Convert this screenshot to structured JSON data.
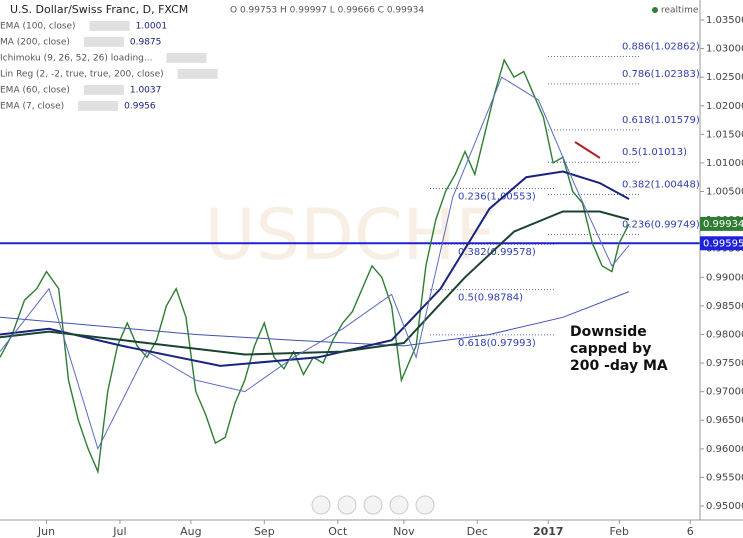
{
  "chart_data": {
    "type": "line",
    "title": "U.S. Dollar/Swiss Franc, D, FXCM",
    "ohlc_text": "O 0.99753 H 0.99997 L 0.99666 C 0.99934",
    "realtime": "realtime",
    "watermark": "USDCHF",
    "indicators": [
      {
        "name": "EMA (100, close)",
        "value": "1.0001"
      },
      {
        "name": "MA (200, close)",
        "value": "0.9875"
      },
      {
        "name": "Ichimoku (9, 26, 52, 26) loading..."
      },
      {
        "name": "Lin Reg (2, -2, true, true, 200, close)"
      },
      {
        "name": "EMA (60, close)",
        "value": "1.0037"
      },
      {
        "name": "EMA (7, close)",
        "value": "0.9956"
      }
    ],
    "xlim": [
      0,
      286
    ],
    "xticks": [
      {
        "value": 19,
        "label": "Jun"
      },
      {
        "value": 49,
        "label": "Jul"
      },
      {
        "value": 78,
        "label": "Aug"
      },
      {
        "value": 108,
        "label": "Sep"
      },
      {
        "value": 138,
        "label": "Oct"
      },
      {
        "value": 165,
        "label": "Nov"
      },
      {
        "value": 195,
        "label": "Dec"
      },
      {
        "value": 224,
        "label": "2017"
      },
      {
        "value": 253,
        "label": "Feb"
      },
      {
        "value": 282,
        "label": "6"
      }
    ],
    "ylim": [
      0.95,
      1.035
    ],
    "yticks": [
      {
        "value": 1.035,
        "label": "1.03500"
      },
      {
        "value": 1.03,
        "label": "1.03000"
      },
      {
        "value": 1.025,
        "label": "1.02500"
      },
      {
        "value": 1.02,
        "label": "1.02000"
      },
      {
        "value": 1.015,
        "label": "1.01500"
      },
      {
        "value": 1.01,
        "label": "1.01000"
      },
      {
        "value": 1.005,
        "label": "1.00500"
      },
      {
        "value": 1.0,
        "label": "1.00000"
      },
      {
        "value": 0.995,
        "label": "0.99500"
      },
      {
        "value": 0.99,
        "label": "0.99000"
      },
      {
        "value": 0.985,
        "label": "0.98500"
      },
      {
        "value": 0.98,
        "label": "0.98000"
      },
      {
        "value": 0.975,
        "label": "0.97500"
      },
      {
        "value": 0.97,
        "label": "0.97000"
      },
      {
        "value": 0.965,
        "label": "0.96500"
      },
      {
        "value": 0.96,
        "label": "0.96000"
      },
      {
        "value": 0.955,
        "label": "0.95500"
      },
      {
        "value": 0.95,
        "label": "0.95000"
      }
    ],
    "series": [
      {
        "name": "USDCHF",
        "color": "#2e7d32",
        "x": [
          0,
          5,
          10,
          15,
          19,
          24,
          28,
          32,
          36,
          40,
          44,
          48,
          52,
          56,
          60,
          64,
          68,
          72,
          76,
          80,
          84,
          88,
          92,
          96,
          100,
          104,
          108,
          112,
          116,
          120,
          124,
          128,
          132,
          136,
          140,
          144,
          148,
          152,
          156,
          160,
          164,
          167,
          170,
          174,
          178,
          182,
          186,
          190,
          194,
          198,
          202,
          206,
          210,
          214,
          218,
          222,
          226,
          230,
          234,
          238,
          242,
          246,
          250,
          253,
          257
        ],
        "values": [
          0.976,
          0.98,
          0.986,
          0.988,
          0.991,
          0.988,
          0.972,
          0.965,
          0.96,
          0.956,
          0.97,
          0.978,
          0.982,
          0.978,
          0.976,
          0.979,
          0.985,
          0.988,
          0.983,
          0.97,
          0.966,
          0.961,
          0.962,
          0.968,
          0.972,
          0.978,
          0.982,
          0.976,
          0.974,
          0.977,
          0.973,
          0.976,
          0.975,
          0.979,
          0.982,
          0.984,
          0.988,
          0.992,
          0.99,
          0.985,
          0.972,
          0.975,
          0.978,
          0.992,
          1.0,
          1.005,
          1.008,
          1.012,
          1.008,
          1.015,
          1.022,
          1.028,
          1.025,
          1.026,
          1.022,
          1.018,
          1.01,
          1.011,
          1.005,
          1.003,
          0.996,
          0.992,
          0.991,
          0.996,
          0.9993
        ]
      },
      {
        "name": "MA (200, close)",
        "color": "#3f51b5",
        "x": [
          0,
          40,
          80,
          120,
          165,
          200,
          230,
          257
        ],
        "values": [
          0.983,
          0.9815,
          0.98,
          0.979,
          0.978,
          0.98,
          0.983,
          0.9875
        ]
      },
      {
        "name": "EMA (60, close)",
        "color": "#1a237e",
        "x": [
          0,
          20,
          50,
          90,
          130,
          160,
          180,
          200,
          215,
          230,
          245,
          257
        ],
        "values": [
          0.98,
          0.981,
          0.978,
          0.9745,
          0.976,
          0.979,
          0.988,
          1.002,
          1.0075,
          1.0085,
          1.0065,
          1.0037
        ]
      },
      {
        "name": "EMA (100, close)",
        "color": "#1b4332",
        "x": [
          0,
          20,
          60,
          100,
          140,
          165,
          190,
          210,
          230,
          245,
          257
        ],
        "values": [
          0.9795,
          0.9805,
          0.9785,
          0.9765,
          0.977,
          0.9785,
          0.99,
          0.998,
          1.0015,
          1.0015,
          1.0001
        ]
      },
      {
        "name": "EMA (7, close)",
        "color": "#5c6bc0",
        "x": [
          0,
          20,
          40,
          60,
          80,
          100,
          120,
          140,
          160,
          170,
          185,
          205,
          220,
          235,
          250,
          257
        ],
        "values": [
          0.977,
          0.988,
          0.96,
          0.977,
          0.972,
          0.97,
          0.976,
          0.981,
          0.987,
          0.976,
          1.004,
          1.025,
          1.021,
          1.006,
          0.992,
          0.9956
        ]
      }
    ],
    "fib_left": [
      {
        "value": 1.00553,
        "label": "0.236(1.00553)"
      },
      {
        "value": 0.99578,
        "label": "0.382(0.99578)"
      },
      {
        "value": 0.98784,
        "label": "0.5(0.98784)"
      },
      {
        "value": 0.97993,
        "label": "0.618(0.97993)"
      }
    ],
    "fib_right": [
      {
        "value": 1.02862,
        "label": "0.886(1.02862)"
      },
      {
        "value": 1.02383,
        "label": "0.786(1.02383)"
      },
      {
        "value": 1.01579,
        "label": "0.618(1.01579)"
      },
      {
        "value": 1.01013,
        "label": "0.5(1.01013)"
      },
      {
        "value": 1.00448,
        "label": "0.382(1.00448)"
      },
      {
        "value": 0.99749,
        "label": "0.236(0.99749)"
      }
    ],
    "last_price": {
      "value": 0.99934,
      "label": "0.99934"
    },
    "support": {
      "value": 0.99595,
      "label": "0.99595"
    },
    "annotation": [
      "Downside",
      "capped by",
      "200 -day MA"
    ]
  }
}
